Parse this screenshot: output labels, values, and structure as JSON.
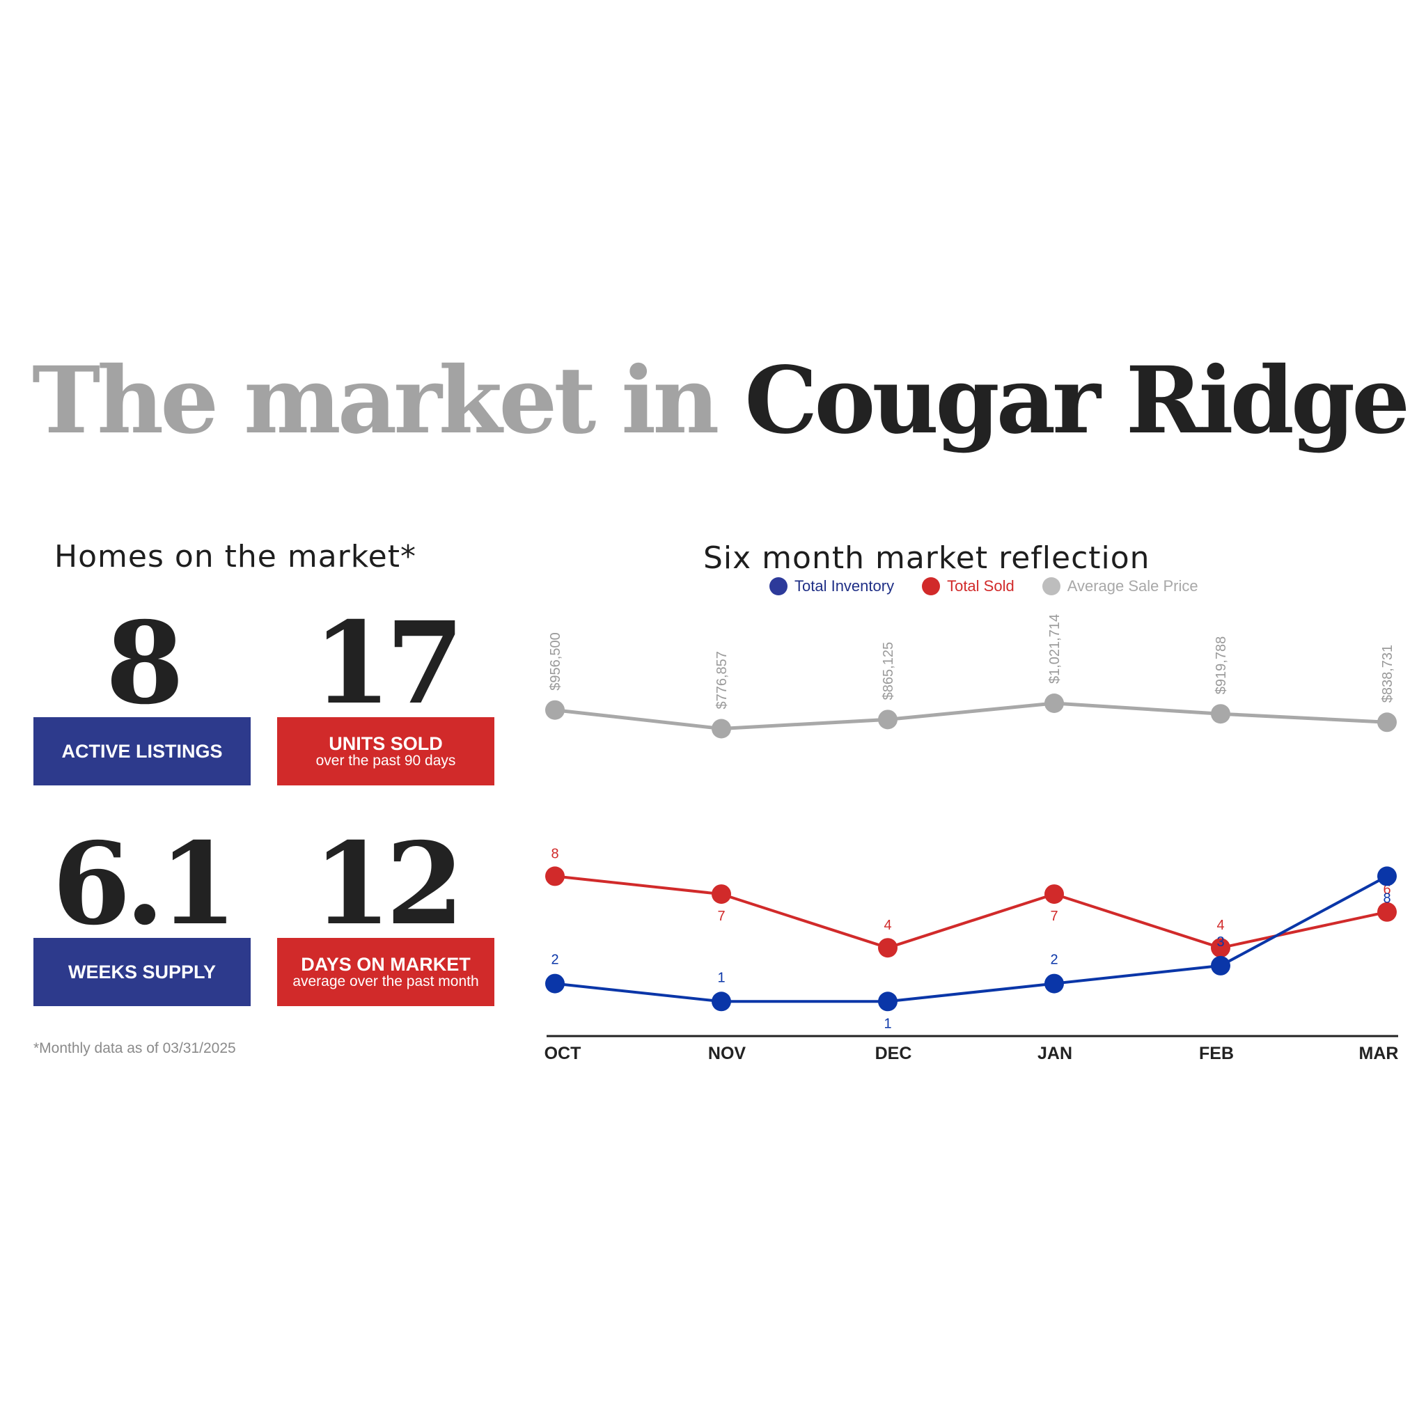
{
  "headline": {
    "lead": "The market in ",
    "place": "Cougar Ridge"
  },
  "homes": {
    "title": "Homes on the market*",
    "stats": [
      {
        "value": "8",
        "label": "ACTIVE LISTINGS",
        "sub": ""
      },
      {
        "value": "17",
        "label": "UNITS SOLD",
        "sub": "over the past 90 days"
      },
      {
        "value": "6.1",
        "label": "WEEKS SUPPLY",
        "sub": ""
      },
      {
        "value": "12",
        "label": "DAYS ON MARKET",
        "sub": "average over the past month"
      }
    ],
    "footnote": "*Monthly data as of 03/31/2025"
  },
  "colors": {
    "blue_series": "#0a36a8",
    "red_series": "#d12a2a",
    "gray_series": "#a8a8a8",
    "blue_box": "#2d3a8c",
    "red_box": "#d12a2a"
  },
  "chart_data": {
    "type": "line",
    "title": "Six month market reflection",
    "categories": [
      "OCT",
      "NOV",
      "DEC",
      "JAN",
      "FEB",
      "MAR"
    ],
    "legend_position": "top-center",
    "series": [
      {
        "name": "Total Inventory",
        "color": "#0a36a8",
        "values": [
          2,
          1,
          1,
          2,
          3,
          8
        ],
        "labels": [
          "2",
          "1",
          "1",
          "2",
          "3",
          "8"
        ]
      },
      {
        "name": "Total Sold",
        "color": "#d12a2a",
        "values": [
          8,
          7,
          4,
          7,
          4,
          6
        ],
        "labels": [
          "8",
          "7",
          "4",
          "7",
          "4",
          "6"
        ]
      },
      {
        "name": "Average Sale Price",
        "color": "#a8a8a8",
        "values": [
          956500,
          776857,
          865125,
          1021714,
          919788,
          838731
        ],
        "labels": [
          "$956,500",
          "$776,857",
          "$865,125",
          "$1,021,714",
          "$919,788",
          "$838,731"
        ]
      }
    ]
  }
}
